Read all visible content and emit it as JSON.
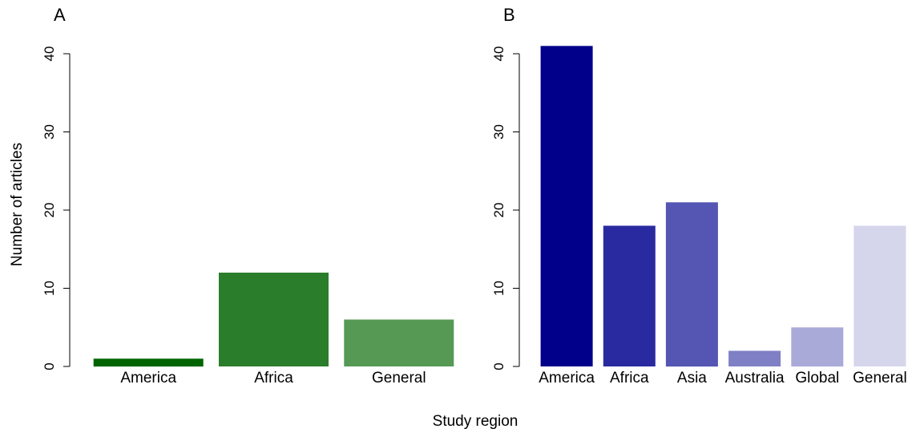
{
  "figure": {
    "xlabel": "Study region",
    "ylabel": "Number of articles"
  },
  "chart_data": [
    {
      "type": "bar",
      "panel_label": "A",
      "categories": [
        "America",
        "Africa",
        "General"
      ],
      "values": [
        1,
        12,
        6
      ],
      "colors": [
        "#006400",
        "#2a7d2a",
        "#559955"
      ],
      "ylim": [
        0,
        40
      ],
      "yticks": [
        "0",
        "10",
        "20",
        "30",
        "40"
      ],
      "ytick_values": [
        0,
        10,
        20,
        30,
        40
      ],
      "grid": false,
      "title": "",
      "xlabel": "Study region",
      "ylabel": "Number of articles"
    },
    {
      "type": "bar",
      "panel_label": "B",
      "categories": [
        "America",
        "Africa",
        "Asia",
        "Australia",
        "Global",
        "General"
      ],
      "values": [
        41,
        18,
        21,
        2,
        5,
        18
      ],
      "colors": [
        "#00008b",
        "#2a2aa0",
        "#5555b3",
        "#7f7fc6",
        "#aaaad9",
        "#d5d5ec"
      ],
      "ylim": [
        0,
        40
      ],
      "yticks": [
        "0",
        "10",
        "20",
        "30",
        "40"
      ],
      "ytick_values": [
        0,
        10,
        20,
        30,
        40
      ],
      "grid": false,
      "title": "",
      "xlabel": "Study region",
      "ylabel": ""
    }
  ]
}
